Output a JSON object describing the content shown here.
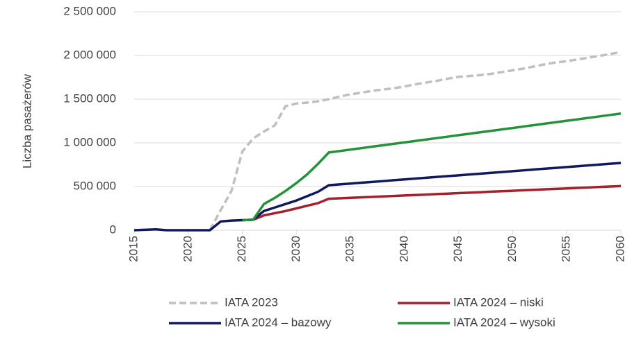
{
  "chart_data": {
    "type": "line",
    "y_label": "Liczba pasażerów",
    "x": [
      2015,
      2016,
      2017,
      2018,
      2019,
      2020,
      2021,
      2022,
      2023,
      2024,
      2025,
      2026,
      2027,
      2028,
      2029,
      2030,
      2031,
      2032,
      2033,
      2034,
      2035,
      2036,
      2037,
      2038,
      2039,
      2040,
      2041,
      2042,
      2043,
      2044,
      2045,
      2046,
      2047,
      2048,
      2049,
      2050,
      2051,
      2052,
      2053,
      2054,
      2055,
      2056,
      2057,
      2058,
      2059,
      2060
    ],
    "series": [
      {
        "name": "IATA 2023",
        "color": "#bfbfbf",
        "dashed": true,
        "values": [
          null,
          null,
          null,
          null,
          null,
          null,
          null,
          0,
          230000,
          450000,
          900000,
          1050000,
          1130000,
          1200000,
          1420000,
          1450000,
          1460000,
          1475000,
          1500000,
          1530000,
          1555000,
          1575000,
          1595000,
          1610000,
          1625000,
          1645000,
          1670000,
          1690000,
          1710000,
          1735000,
          1755000,
          1765000,
          1775000,
          1790000,
          1810000,
          1830000,
          1850000,
          1875000,
          1900000,
          1920000,
          1935000,
          1955000,
          1975000,
          1995000,
          2015000,
          2040000
        ]
      },
      {
        "name": "IATA 2024 – niski",
        "color": "#a5202a",
        "values": [
          null,
          null,
          null,
          null,
          null,
          null,
          null,
          null,
          null,
          null,
          115000,
          120000,
          170000,
          195000,
          220000,
          250000,
          280000,
          310000,
          360000,
          365000,
          371000,
          376000,
          381000,
          387000,
          392000,
          398000,
          403000,
          408000,
          414000,
          419000,
          425000,
          430000,
          435000,
          441000,
          446000,
          451000,
          457000,
          462000,
          468000,
          473000,
          478000,
          484000,
          489000,
          495000,
          500000,
          505000
        ]
      },
      {
        "name": "IATA 2024 – bazowy",
        "color": "#0f1a5e",
        "values": [
          0,
          5000,
          10000,
          0,
          0,
          0,
          0,
          0,
          100000,
          110000,
          115000,
          120000,
          220000,
          260000,
          300000,
          340000,
          390000,
          440000,
          515000,
          525000,
          534000,
          544000,
          553000,
          562000,
          572000,
          581000,
          591000,
          600000,
          610000,
          619000,
          628000,
          638000,
          647000,
          657000,
          666000,
          676000,
          685000,
          695000,
          704000,
          713000,
          723000,
          732000,
          742000,
          751000,
          761000,
          770000
        ]
      },
      {
        "name": "IATA 2024 – wysoki",
        "color": "#25913a",
        "values": [
          null,
          null,
          null,
          null,
          null,
          null,
          null,
          null,
          null,
          null,
          115000,
          120000,
          300000,
          370000,
          450000,
          540000,
          640000,
          760000,
          890000,
          906000,
          923000,
          939000,
          956000,
          972000,
          989000,
          1005000,
          1022000,
          1038000,
          1055000,
          1071000,
          1088000,
          1104000,
          1121000,
          1137000,
          1154000,
          1170000,
          1187000,
          1203000,
          1220000,
          1236000,
          1253000,
          1269000,
          1286000,
          1302000,
          1319000,
          1335000
        ]
      }
    ],
    "xlim": [
      2015,
      2060
    ],
    "xticks": [
      2015,
      2020,
      2025,
      2030,
      2035,
      2040,
      2045,
      2050,
      2055,
      2060
    ],
    "ylim": [
      0,
      2500000
    ],
    "yticks": [
      0,
      {
        "value": 500000,
        "label": "500 000"
      },
      {
        "value": 1000000,
        "label": "1 000 000"
      },
      {
        "value": 1500000,
        "label": "1 500 000"
      },
      {
        "value": 2000000,
        "label": "2 000 000"
      },
      {
        "value": 2500000,
        "label": "2 500 000"
      }
    ],
    "grid": true
  }
}
